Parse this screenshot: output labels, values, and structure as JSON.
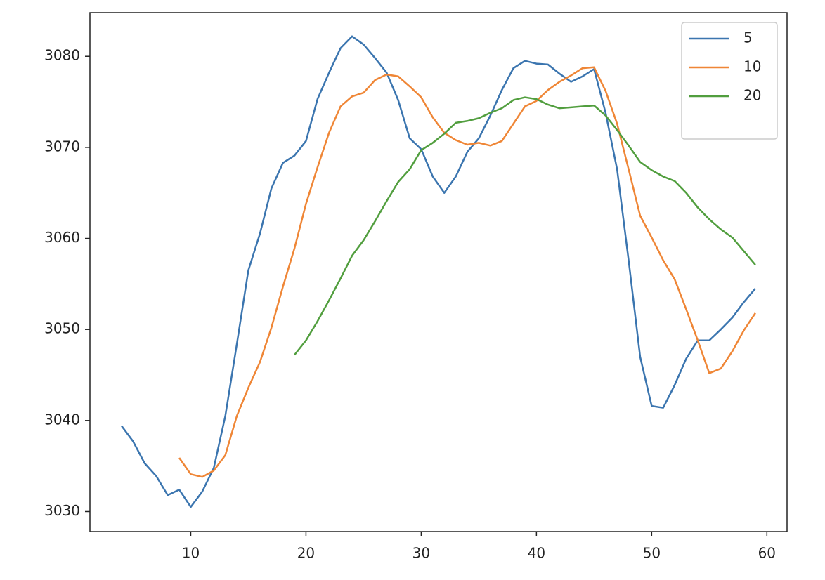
{
  "chart_data": {
    "type": "line",
    "x": [
      4,
      5,
      6,
      7,
      8,
      9,
      10,
      11,
      12,
      13,
      14,
      15,
      16,
      17,
      18,
      19,
      20,
      21,
      22,
      23,
      24,
      25,
      26,
      27,
      28,
      29,
      30,
      31,
      32,
      33,
      34,
      35,
      36,
      37,
      38,
      39,
      40,
      41,
      42,
      43,
      44,
      45,
      46,
      47,
      48,
      49,
      50,
      51,
      52,
      53,
      54,
      55,
      56,
      57,
      58,
      59
    ],
    "series": [
      {
        "name": "5",
        "color": "#3b75af",
        "values": [
          3039.4,
          3037.7,
          3035.3,
          3033.9,
          3031.8,
          3032.4,
          3030.5,
          3032.2,
          3034.8,
          3040.5,
          3048.4,
          3056.5,
          3060.5,
          3065.5,
          3068.3,
          3069.1,
          3070.7,
          3075.3,
          3078.2,
          3080.9,
          3082.2,
          3081.3,
          3079.8,
          3078.2,
          3075.2,
          3071.0,
          3069.8,
          3066.8,
          3065.0,
          3066.8,
          3069.5,
          3071.0,
          3073.5,
          3076.3,
          3078.7,
          3079.5,
          3079.2,
          3079.1,
          3078.1,
          3077.2,
          3077.8,
          3078.6,
          3073.8,
          3067.6,
          3057.6,
          3047.0,
          3041.6,
          3041.4,
          3043.9,
          3046.8,
          3048.8,
          3048.8,
          3050.0,
          3051.3,
          3053.0,
          3054.5
        ]
      },
      {
        "name": "10",
        "color": "#ef8636",
        "values": [
          null,
          null,
          null,
          null,
          null,
          3035.9,
          3034.1,
          3033.8,
          3034.5,
          3036.2,
          3040.5,
          3043.6,
          3046.4,
          3050.2,
          3054.7,
          3058.9,
          3063.8,
          3067.8,
          3071.6,
          3074.5,
          3075.6,
          3076.0,
          3077.4,
          3078.0,
          3077.8,
          3076.7,
          3075.5,
          3073.3,
          3071.6,
          3070.8,
          3070.3,
          3070.5,
          3070.2,
          3070.7,
          3072.6,
          3074.5,
          3075.1,
          3076.3,
          3077.2,
          3077.9,
          3078.7,
          3078.8,
          3076.2,
          3072.6,
          3067.6,
          3062.5,
          3060.1,
          3057.6,
          3055.5,
          3052.2,
          3048.8,
          3045.2,
          3045.7,
          3047.6,
          3049.9,
          3051.8
        ]
      },
      {
        "name": "20",
        "color": "#519e3e",
        "values": [
          null,
          null,
          null,
          null,
          null,
          null,
          null,
          null,
          null,
          null,
          null,
          null,
          null,
          null,
          null,
          3047.2,
          3048.8,
          3050.9,
          3053.2,
          3055.6,
          3058.1,
          3059.8,
          3061.9,
          3064.1,
          3066.2,
          3067.6,
          3069.7,
          3070.5,
          3071.5,
          3072.7,
          3072.9,
          3073.2,
          3073.8,
          3074.3,
          3075.2,
          3075.5,
          3075.3,
          3074.7,
          3074.3,
          3074.4,
          3074.5,
          3074.6,
          3073.5,
          3071.9,
          3070.2,
          3068.4,
          3067.5,
          3066.8,
          3066.3,
          3065.0,
          3063.4,
          3062.1,
          3061.0,
          3060.1,
          3058.6,
          3057.1
        ]
      }
    ],
    "xlim": [
      1.25,
      61.75
    ],
    "xticks": [
      10,
      20,
      30,
      40,
      50,
      60
    ],
    "ylim": [
      3027.8,
      3084.8
    ],
    "yticks": [
      3030,
      3040,
      3050,
      3060,
      3070,
      3080
    ],
    "grid": false,
    "legend": "upper right"
  }
}
